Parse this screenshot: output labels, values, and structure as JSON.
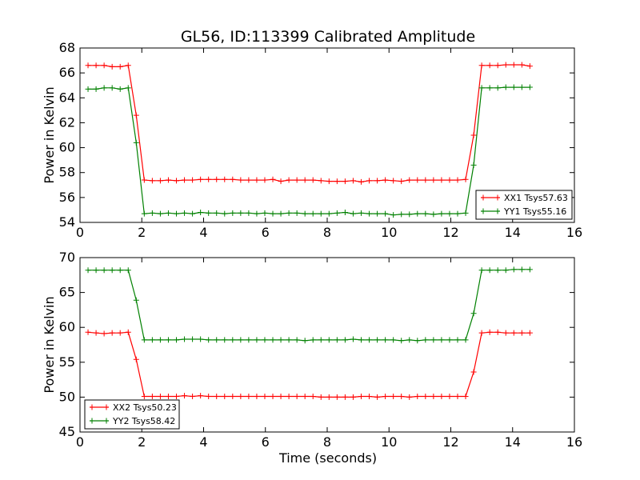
{
  "chart_data": [
    {
      "type": "line",
      "title": "GL56, ID:113399 Calibrated Amplitude",
      "xlabel": "",
      "ylabel": "Power in Kelvin",
      "xlim": [
        0,
        16
      ],
      "ylim": [
        54,
        68
      ],
      "xticks": [
        0,
        2,
        4,
        6,
        8,
        10,
        12,
        14,
        16
      ],
      "yticks": [
        54,
        56,
        58,
        60,
        62,
        64,
        66,
        68
      ],
      "grid": false,
      "legend_position": "lower-right",
      "x": [
        0.26,
        0.52,
        0.78,
        1.04,
        1.3,
        1.56,
        1.82,
        2.08,
        2.34,
        2.6,
        2.86,
        3.12,
        3.38,
        3.64,
        3.9,
        4.16,
        4.42,
        4.68,
        4.94,
        5.2,
        5.46,
        5.72,
        5.98,
        6.24,
        6.5,
        6.76,
        7.02,
        7.28,
        7.54,
        7.8,
        8.06,
        8.32,
        8.58,
        8.84,
        9.1,
        9.36,
        9.62,
        9.88,
        10.14,
        10.4,
        10.66,
        10.92,
        11.18,
        11.44,
        11.7,
        11.96,
        12.22,
        12.48,
        12.74,
        13.0,
        13.26,
        13.52,
        13.78,
        14.04,
        14.3,
        14.56
      ],
      "series": [
        {
          "name": "XX1 Tsys57.63",
          "color": "#ff0000",
          "values": [
            66.6,
            66.6,
            66.6,
            66.5,
            66.5,
            66.6,
            62.6,
            57.4,
            57.35,
            57.35,
            57.4,
            57.35,
            57.4,
            57.4,
            57.45,
            57.45,
            57.45,
            57.45,
            57.45,
            57.4,
            57.4,
            57.4,
            57.4,
            57.45,
            57.3,
            57.4,
            57.4,
            57.4,
            57.4,
            57.35,
            57.3,
            57.3,
            57.3,
            57.35,
            57.25,
            57.35,
            57.35,
            57.4,
            57.35,
            57.3,
            57.4,
            57.4,
            57.4,
            57.4,
            57.4,
            57.4,
            57.4,
            57.45,
            61.0,
            66.6,
            66.6,
            66.6,
            66.65,
            66.65,
            66.65,
            66.55
          ]
        },
        {
          "name": "YY1 Tsys55.16",
          "color": "#008000",
          "values": [
            64.7,
            64.7,
            64.8,
            64.8,
            64.7,
            64.8,
            60.4,
            54.7,
            54.75,
            54.7,
            54.75,
            54.7,
            54.75,
            54.7,
            54.8,
            54.75,
            54.75,
            54.7,
            54.75,
            54.75,
            54.75,
            54.7,
            54.75,
            54.7,
            54.7,
            54.75,
            54.75,
            54.7,
            54.7,
            54.7,
            54.7,
            54.75,
            54.8,
            54.7,
            54.75,
            54.7,
            54.7,
            54.7,
            54.6,
            54.65,
            54.65,
            54.7,
            54.7,
            54.65,
            54.7,
            54.7,
            54.7,
            54.75,
            58.6,
            64.8,
            64.8,
            64.8,
            64.85,
            64.85,
            64.85,
            64.85
          ]
        }
      ]
    },
    {
      "type": "line",
      "title": "",
      "xlabel": "Time (seconds)",
      "ylabel": "Power in Kelvin",
      "xlim": [
        0,
        16
      ],
      "ylim": [
        45,
        70
      ],
      "xticks": [
        0,
        2,
        4,
        6,
        8,
        10,
        12,
        14,
        16
      ],
      "yticks": [
        45,
        50,
        55,
        60,
        65,
        70
      ],
      "grid": false,
      "legend_position": "lower-left",
      "x": [
        0.26,
        0.52,
        0.78,
        1.04,
        1.3,
        1.56,
        1.82,
        2.08,
        2.34,
        2.6,
        2.86,
        3.12,
        3.38,
        3.64,
        3.9,
        4.16,
        4.42,
        4.68,
        4.94,
        5.2,
        5.46,
        5.72,
        5.98,
        6.24,
        6.5,
        6.76,
        7.02,
        7.28,
        7.54,
        7.8,
        8.06,
        8.32,
        8.58,
        8.84,
        9.1,
        9.36,
        9.62,
        9.88,
        10.14,
        10.4,
        10.66,
        10.92,
        11.18,
        11.44,
        11.7,
        11.96,
        12.22,
        12.48,
        12.74,
        13.0,
        13.26,
        13.52,
        13.78,
        14.04,
        14.3,
        14.56
      ],
      "series": [
        {
          "name": "XX2 Tsys50.23",
          "color": "#ff0000",
          "values": [
            59.3,
            59.2,
            59.1,
            59.2,
            59.2,
            59.3,
            55.4,
            50.1,
            50.1,
            50.1,
            50.1,
            50.1,
            50.2,
            50.1,
            50.2,
            50.1,
            50.1,
            50.1,
            50.1,
            50.1,
            50.1,
            50.1,
            50.1,
            50.1,
            50.1,
            50.1,
            50.1,
            50.1,
            50.1,
            50.0,
            50.0,
            50.0,
            50.0,
            50.0,
            50.1,
            50.1,
            50.0,
            50.1,
            50.1,
            50.1,
            50.0,
            50.1,
            50.1,
            50.1,
            50.1,
            50.1,
            50.1,
            50.1,
            53.6,
            59.2,
            59.3,
            59.3,
            59.2,
            59.2,
            59.2,
            59.2
          ]
        },
        {
          "name": "YY2 Tsys58.42",
          "color": "#008000",
          "values": [
            68.2,
            68.2,
            68.2,
            68.2,
            68.2,
            68.2,
            63.9,
            58.2,
            58.2,
            58.2,
            58.2,
            58.2,
            58.3,
            58.3,
            58.3,
            58.2,
            58.2,
            58.2,
            58.2,
            58.2,
            58.2,
            58.2,
            58.2,
            58.2,
            58.2,
            58.2,
            58.2,
            58.1,
            58.2,
            58.2,
            58.2,
            58.2,
            58.2,
            58.3,
            58.2,
            58.2,
            58.2,
            58.2,
            58.2,
            58.1,
            58.2,
            58.1,
            58.2,
            58.2,
            58.2,
            58.2,
            58.2,
            58.2,
            62.0,
            68.2,
            68.2,
            68.2,
            68.2,
            68.3,
            68.3,
            68.3
          ]
        }
      ]
    }
  ]
}
